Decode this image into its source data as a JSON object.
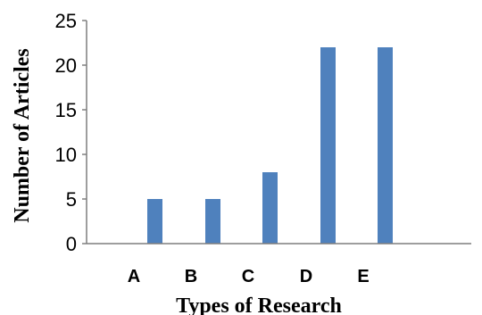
{
  "chart_data": {
    "type": "bar",
    "categories": [
      "A",
      "B",
      "C",
      "D",
      "E"
    ],
    "values": [
      5,
      5,
      8,
      22,
      22
    ],
    "title": "",
    "xlabel": "Types of Research",
    "ylabel": "Number of  Articles",
    "ylim": [
      0,
      25
    ],
    "yticks": [
      "0",
      "5",
      "10",
      "15",
      "20",
      "25"
    ],
    "grid": false,
    "legend": "none",
    "bar_color": "#4f81bd"
  }
}
